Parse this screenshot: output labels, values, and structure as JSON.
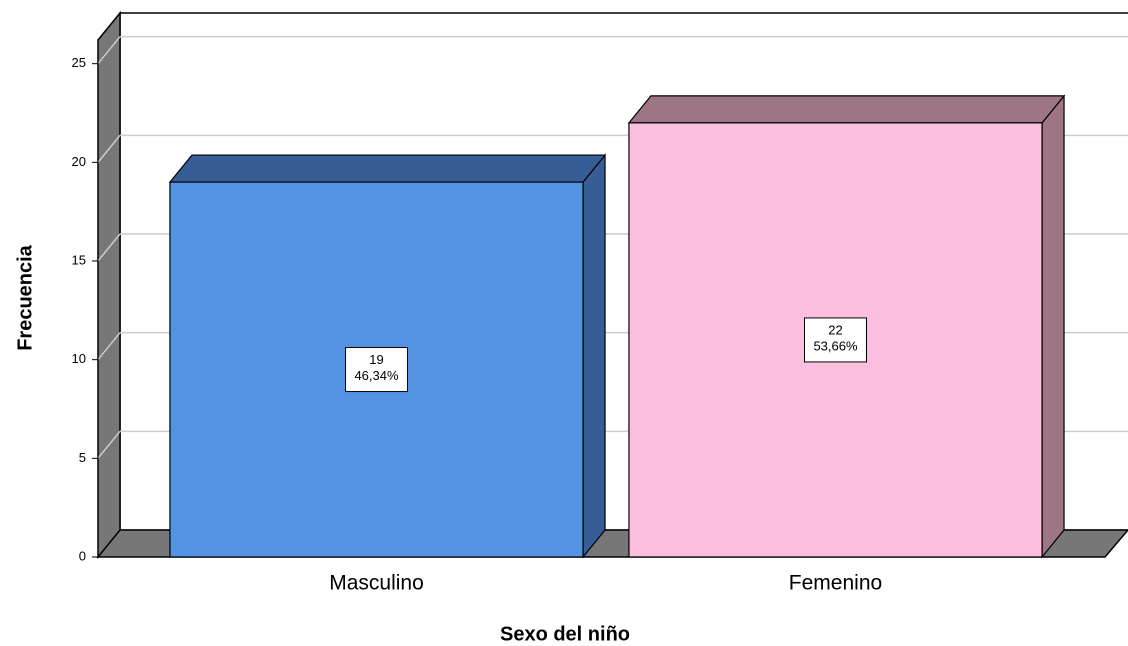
{
  "chart_data": {
    "type": "bar3d",
    "x_label": "Sexo del niño",
    "y_label": "Frecuencia",
    "categories": [
      "Masculino",
      "Femenino"
    ],
    "values": [
      19,
      22
    ],
    "percentages": [
      46.34,
      53.66
    ],
    "percentage_labels": [
      "46,34%",
      "53,66%"
    ],
    "colors": [
      "#5294e2",
      "#fdbfe0"
    ],
    "side_colors": [
      "#365d95",
      "#9e7585"
    ],
    "ylim": [
      0,
      26.2
    ],
    "yticks": [
      0,
      5,
      10,
      15,
      20,
      25
    ],
    "grid": true
  }
}
